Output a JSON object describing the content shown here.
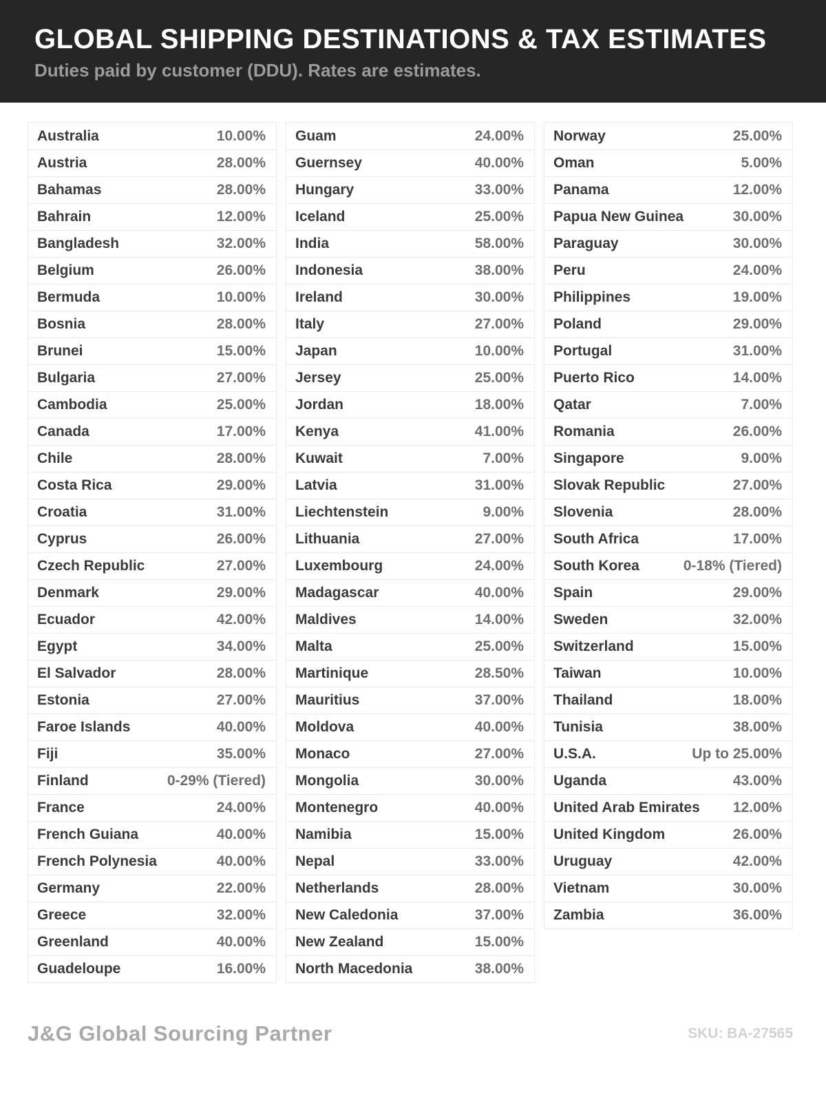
{
  "header": {
    "title": "GLOBAL SHIPPING DESTINATIONS & TAX ESTIMATES",
    "subtitle": "Duties paid by customer (DDU). Rates are estimates."
  },
  "columns": [
    [
      {
        "country": "Australia",
        "rate": "10.00%"
      },
      {
        "country": "Austria",
        "rate": "28.00%"
      },
      {
        "country": "Bahamas",
        "rate": "28.00%"
      },
      {
        "country": "Bahrain",
        "rate": "12.00%"
      },
      {
        "country": "Bangladesh",
        "rate": "32.00%"
      },
      {
        "country": "Belgium",
        "rate": "26.00%"
      },
      {
        "country": "Bermuda",
        "rate": "10.00%"
      },
      {
        "country": "Bosnia",
        "rate": "28.00%"
      },
      {
        "country": "Brunei",
        "rate": "15.00%"
      },
      {
        "country": "Bulgaria",
        "rate": "27.00%"
      },
      {
        "country": "Cambodia",
        "rate": "25.00%"
      },
      {
        "country": "Canada",
        "rate": "17.00%"
      },
      {
        "country": "Chile",
        "rate": "28.00%"
      },
      {
        "country": "Costa Rica",
        "rate": "29.00%"
      },
      {
        "country": "Croatia",
        "rate": "31.00%"
      },
      {
        "country": "Cyprus",
        "rate": "26.00%"
      },
      {
        "country": "Czech Republic",
        "rate": "27.00%"
      },
      {
        "country": "Denmark",
        "rate": "29.00%"
      },
      {
        "country": "Ecuador",
        "rate": "42.00%"
      },
      {
        "country": "Egypt",
        "rate": "34.00%"
      },
      {
        "country": "El Salvador",
        "rate": "28.00%"
      },
      {
        "country": "Estonia",
        "rate": "27.00%"
      },
      {
        "country": "Faroe Islands",
        "rate": "40.00%"
      },
      {
        "country": "Fiji",
        "rate": "35.00%"
      },
      {
        "country": "Finland",
        "rate": "0-29% (Tiered)"
      },
      {
        "country": "France",
        "rate": "24.00%"
      },
      {
        "country": "French Guiana",
        "rate": "40.00%"
      },
      {
        "country": "French Polynesia",
        "rate": "40.00%"
      },
      {
        "country": "Germany",
        "rate": "22.00%"
      },
      {
        "country": "Greece",
        "rate": "32.00%"
      },
      {
        "country": "Greenland",
        "rate": "40.00%"
      },
      {
        "country": "Guadeloupe",
        "rate": "16.00%"
      }
    ],
    [
      {
        "country": "Guam",
        "rate": "24.00%"
      },
      {
        "country": "Guernsey",
        "rate": "40.00%"
      },
      {
        "country": "Hungary",
        "rate": "33.00%"
      },
      {
        "country": "Iceland",
        "rate": "25.00%"
      },
      {
        "country": "India",
        "rate": "58.00%"
      },
      {
        "country": "Indonesia",
        "rate": "38.00%"
      },
      {
        "country": "Ireland",
        "rate": "30.00%"
      },
      {
        "country": "Italy",
        "rate": "27.00%"
      },
      {
        "country": "Japan",
        "rate": "10.00%"
      },
      {
        "country": "Jersey",
        "rate": "25.00%"
      },
      {
        "country": "Jordan",
        "rate": "18.00%"
      },
      {
        "country": "Kenya",
        "rate": "41.00%"
      },
      {
        "country": "Kuwait",
        "rate": "7.00%"
      },
      {
        "country": "Latvia",
        "rate": "31.00%"
      },
      {
        "country": "Liechtenstein",
        "rate": "9.00%"
      },
      {
        "country": "Lithuania",
        "rate": "27.00%"
      },
      {
        "country": "Luxembourg",
        "rate": "24.00%"
      },
      {
        "country": "Madagascar",
        "rate": "40.00%"
      },
      {
        "country": "Maldives",
        "rate": "14.00%"
      },
      {
        "country": "Malta",
        "rate": "25.00%"
      },
      {
        "country": "Martinique",
        "rate": "28.50%"
      },
      {
        "country": "Mauritius",
        "rate": "37.00%"
      },
      {
        "country": "Moldova",
        "rate": "40.00%"
      },
      {
        "country": "Monaco",
        "rate": "27.00%"
      },
      {
        "country": "Mongolia",
        "rate": "30.00%"
      },
      {
        "country": "Montenegro",
        "rate": "40.00%"
      },
      {
        "country": "Namibia",
        "rate": "15.00%"
      },
      {
        "country": "Nepal",
        "rate": "33.00%"
      },
      {
        "country": "Netherlands",
        "rate": "28.00%"
      },
      {
        "country": "New Caledonia",
        "rate": "37.00%"
      },
      {
        "country": "New Zealand",
        "rate": "15.00%"
      },
      {
        "country": "North Macedonia",
        "rate": "38.00%"
      }
    ],
    [
      {
        "country": "Norway",
        "rate": "25.00%"
      },
      {
        "country": "Oman",
        "rate": "5.00%"
      },
      {
        "country": "Panama",
        "rate": "12.00%"
      },
      {
        "country": "Papua New Guinea",
        "rate": "30.00%"
      },
      {
        "country": "Paraguay",
        "rate": "30.00%"
      },
      {
        "country": "Peru",
        "rate": "24.00%"
      },
      {
        "country": "Philippines",
        "rate": "19.00%"
      },
      {
        "country": "Poland",
        "rate": "29.00%"
      },
      {
        "country": "Portugal",
        "rate": "31.00%"
      },
      {
        "country": "Puerto Rico",
        "rate": "14.00%"
      },
      {
        "country": "Qatar",
        "rate": "7.00%"
      },
      {
        "country": "Romania",
        "rate": "26.00%"
      },
      {
        "country": "Singapore",
        "rate": "9.00%"
      },
      {
        "country": "Slovak Republic",
        "rate": "27.00%"
      },
      {
        "country": "Slovenia",
        "rate": "28.00%"
      },
      {
        "country": "South Africa",
        "rate": "17.00%"
      },
      {
        "country": "South Korea",
        "rate": "0-18% (Tiered)"
      },
      {
        "country": "Spain",
        "rate": "29.00%"
      },
      {
        "country": "Sweden",
        "rate": "32.00%"
      },
      {
        "country": "Switzerland",
        "rate": "15.00%"
      },
      {
        "country": "Taiwan",
        "rate": "10.00%"
      },
      {
        "country": "Thailand",
        "rate": "18.00%"
      },
      {
        "country": "Tunisia",
        "rate": "38.00%"
      },
      {
        "country": "U.S.A.",
        "rate": "Up to 25.00%"
      },
      {
        "country": "Uganda",
        "rate": "43.00%"
      },
      {
        "country": "United Arab Emirates",
        "rate": "12.00%"
      },
      {
        "country": "United Kingdom",
        "rate": "26.00%"
      },
      {
        "country": "Uruguay",
        "rate": "42.00%"
      },
      {
        "country": "Vietnam",
        "rate": "30.00%"
      },
      {
        "country": "Zambia",
        "rate": "36.00%"
      }
    ]
  ],
  "footer": {
    "brand": "J&G Global Sourcing Partner",
    "sku": "SKU: BA-27565"
  },
  "colors": {
    "header_bg": "#262629",
    "title": "#ffffff",
    "subtitle": "#9c9c9c",
    "country_text": "#3a3a3a",
    "rate_text": "#6e6e6e",
    "row_border": "#ebebeb",
    "brand_text": "#a9a9a9",
    "sku_text": "#d2d2d2"
  }
}
